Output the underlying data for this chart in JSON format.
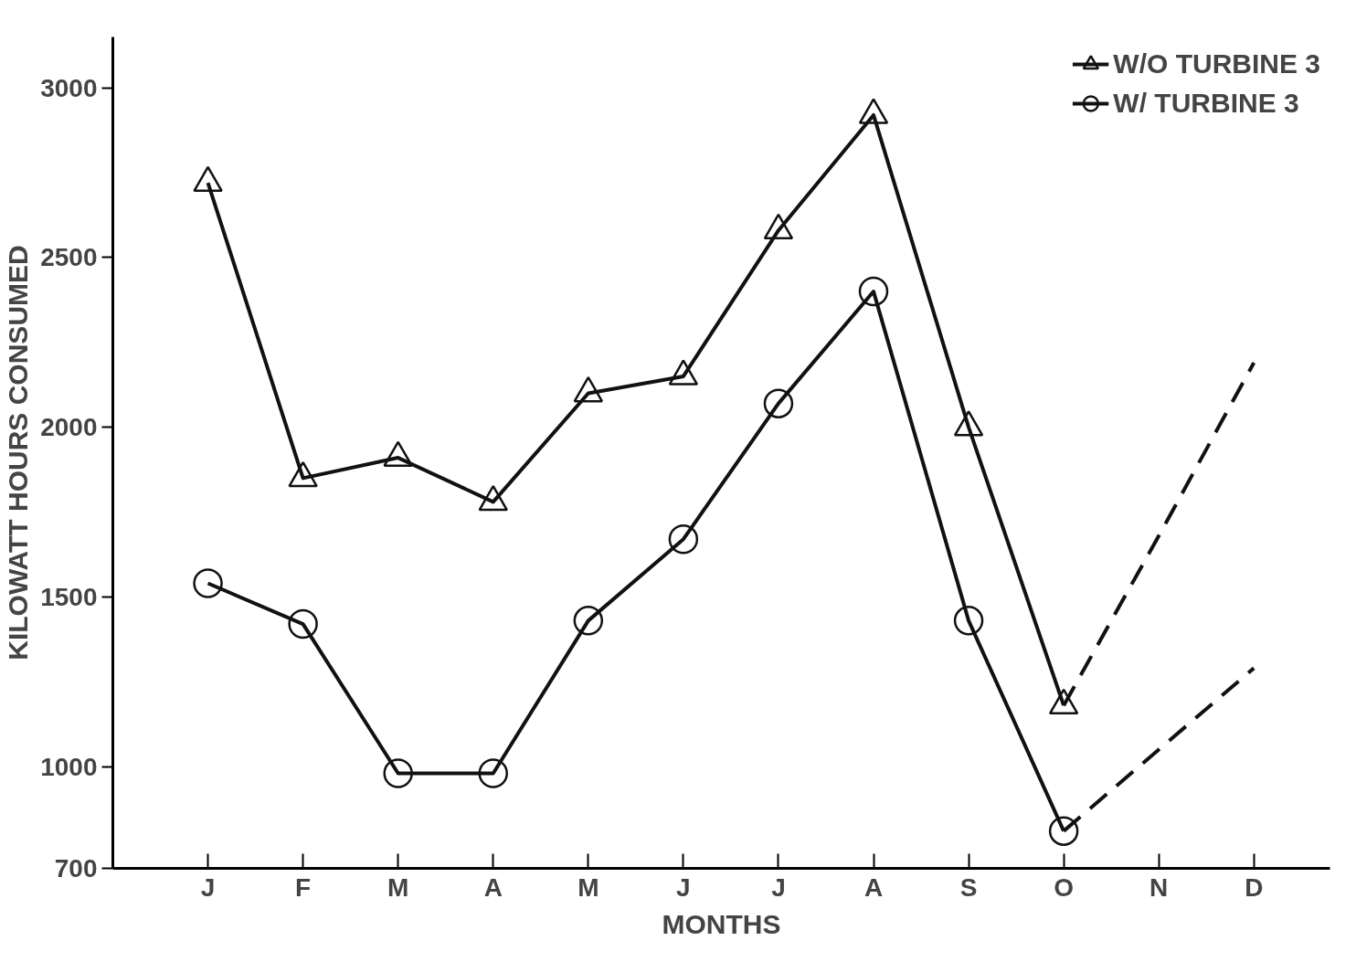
{
  "chart_data": {
    "type": "line",
    "xlabel": "MONTHS",
    "ylabel": "KILOWATT HOURS CONSUMED",
    "categories": [
      "J",
      "F",
      "M",
      "A",
      "M",
      "J",
      "J",
      "A",
      "S",
      "O",
      "N",
      "D"
    ],
    "ylim": [
      700,
      3150
    ],
    "yticks": [
      700,
      1000,
      1500,
      2000,
      2500,
      3000
    ],
    "grid": false,
    "legend": "top right",
    "series": [
      {
        "name": "W/O TURBINE 3",
        "color": "#111111",
        "marker": "triangle",
        "line_style": "solid",
        "values": [
          2720,
          1850,
          1910,
          1780,
          2100,
          2150,
          2580,
          2920,
          2000,
          1180,
          null,
          null
        ]
      },
      {
        "name": "W/ TURBINE 3",
        "color": "#111111",
        "marker": "circle",
        "line_style": "solid",
        "values": [
          1540,
          1420,
          980,
          980,
          1430,
          1670,
          2070,
          2400,
          1430,
          810,
          null,
          null
        ]
      },
      {
        "color": "#111111",
        "marker": "none",
        "line_style": "dashed",
        "values": [
          null,
          null,
          null,
          null,
          null,
          null,
          null,
          null,
          null,
          1180,
          1680,
          2190
        ]
      },
      {
        "color": "#111111",
        "marker": "none",
        "line_style": "dashed",
        "values": [
          null,
          null,
          null,
          null,
          null,
          null,
          null,
          null,
          null,
          810,
          1050,
          1290
        ]
      }
    ]
  }
}
